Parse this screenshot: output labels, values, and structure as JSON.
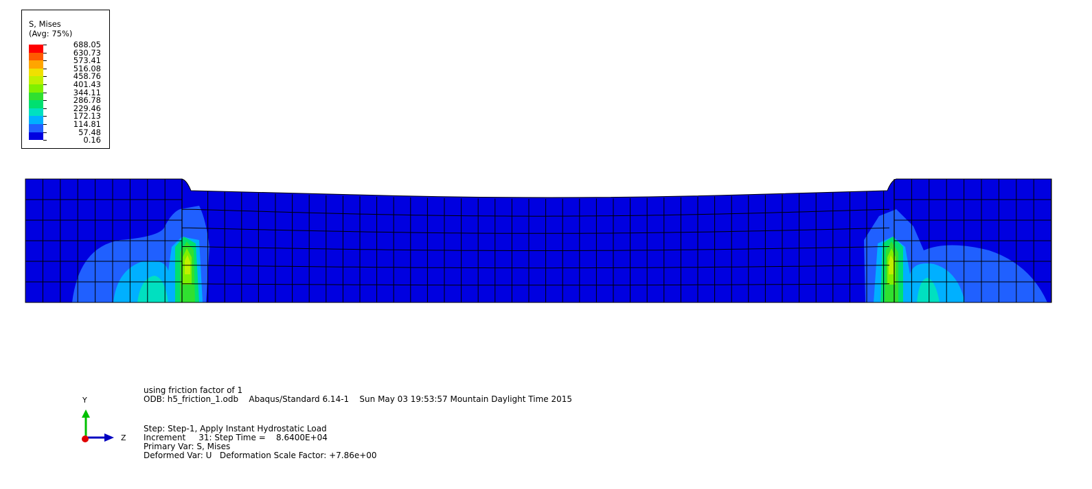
{
  "legend": {
    "title_line1": "S, Mises",
    "title_line2": "(Avg: 75%)",
    "values": [
      "688.05",
      "630.73",
      "573.41",
      "516.08",
      "458.76",
      "401.43",
      "344.11",
      "286.78",
      "229.46",
      "172.13",
      "114.81",
      "57.48",
      "0.16"
    ],
    "colors": [
      "#ff0000",
      "#ff5a00",
      "#ffa500",
      "#f0e000",
      "#c0f000",
      "#80f000",
      "#30e030",
      "#00e070",
      "#00e0c0",
      "#00b0ff",
      "#2060ff",
      "#0000e0"
    ]
  },
  "triad": {
    "y_label": "Y",
    "z_label": "Z",
    "y_color": "#00c000",
    "z_color": "#0000c0",
    "x_color": "#e00000"
  },
  "info": {
    "line1": "using friction factor of 1",
    "line2": "ODB: h5_friction_1.odb    Abaqus/Standard 6.14-1    Sun May 03 19:53:57 Mountain Daylight Time 2015",
    "line3": "Step: Step-1, Apply Instant Hydrostatic Load",
    "line4": "Increment     31: Step Time =    8.6400E+04",
    "line5": "Primary Var: S, Mises",
    "line6": "Deformed Var: U   Deformation Scale Factor: +7.86e+00"
  }
}
